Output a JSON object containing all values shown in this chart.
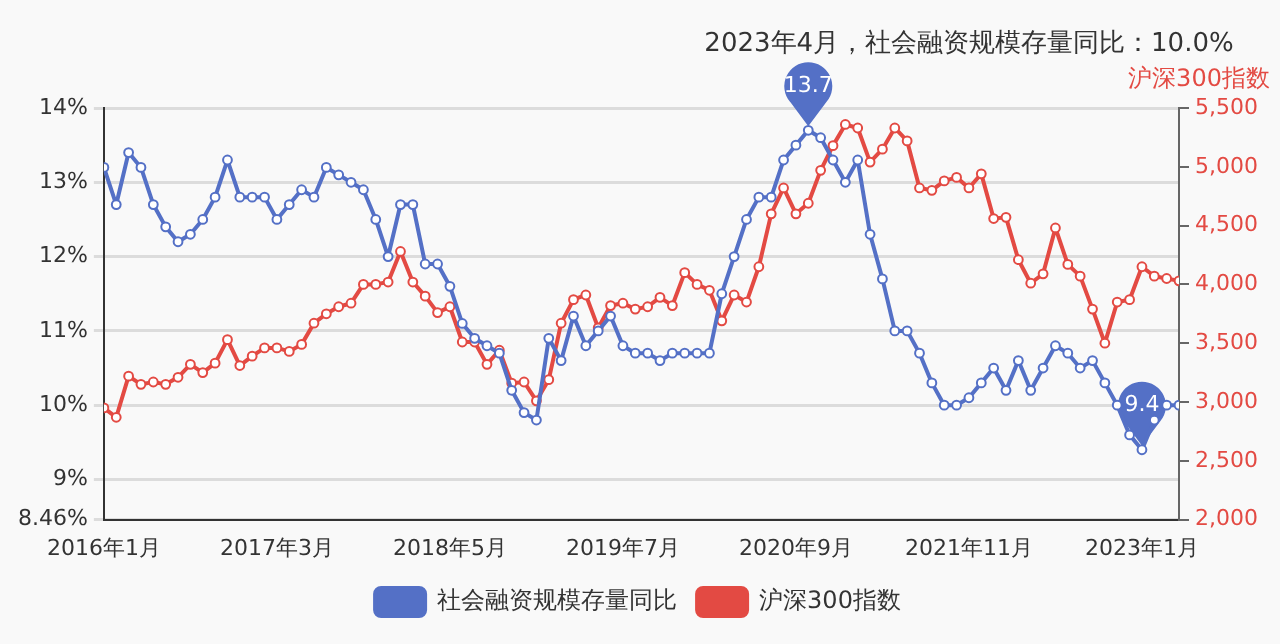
{
  "chart_data": {
    "type": "line",
    "title": "2023年4月，社会融资规模存量同比：10.0%",
    "y2label": "沪深300指数",
    "x": [
      "2016-01",
      "2016-02",
      "2016-03",
      "2016-04",
      "2016-05",
      "2016-06",
      "2016-07",
      "2016-08",
      "2016-09",
      "2016-10",
      "2016-11",
      "2016-12",
      "2017-01",
      "2017-02",
      "2017-03",
      "2017-04",
      "2017-05",
      "2017-06",
      "2017-07",
      "2017-08",
      "2017-09",
      "2017-10",
      "2017-11",
      "2017-12",
      "2018-01",
      "2018-02",
      "2018-03",
      "2018-04",
      "2018-05",
      "2018-06",
      "2018-07",
      "2018-08",
      "2018-09",
      "2018-10",
      "2018-11",
      "2018-12",
      "2019-01",
      "2019-02",
      "2019-03",
      "2019-04",
      "2019-05",
      "2019-06",
      "2019-07",
      "2019-08",
      "2019-09",
      "2019-10",
      "2019-11",
      "2019-12",
      "2020-01",
      "2020-02",
      "2020-03",
      "2020-04",
      "2020-05",
      "2020-06",
      "2020-07",
      "2020-08",
      "2020-09",
      "2020-10",
      "2020-11",
      "2020-12",
      "2021-01",
      "2021-02",
      "2021-03",
      "2021-04",
      "2021-05",
      "2021-06",
      "2021-07",
      "2021-08",
      "2021-09",
      "2021-10",
      "2021-11",
      "2021-12",
      "2022-01",
      "2022-02",
      "2022-03",
      "2022-04",
      "2022-05",
      "2022-06",
      "2022-07",
      "2022-08",
      "2022-09",
      "2022-10",
      "2022-11",
      "2022-12",
      "2023-01",
      "2023-02",
      "2023-03",
      "2023-04"
    ],
    "xlim": [
      "2016-01",
      "2023-04"
    ],
    "xticks": [
      {
        "value": "2016-01",
        "label": "2016年1月"
      },
      {
        "value": "2017-03",
        "label": "2017年3月"
      },
      {
        "value": "2018-05",
        "label": "2018年5月"
      },
      {
        "value": "2019-07",
        "label": "2019年7月"
      },
      {
        "value": "2020-09",
        "label": "2020年9月"
      },
      {
        "value": "2021-11",
        "label": "2021年11月"
      },
      {
        "value": "2023-01",
        "label": "2023年1月"
      }
    ],
    "series": [
      {
        "name": "社会融资规模存量同比",
        "color": "#5470c6",
        "values": [
          13.2,
          12.7,
          13.4,
          13.2,
          12.7,
          12.4,
          12.2,
          12.3,
          12.5,
          12.8,
          13.3,
          12.8,
          12.8,
          12.8,
          12.5,
          12.7,
          12.9,
          12.8,
          13.2,
          13.1,
          13.0,
          12.9,
          12.5,
          12.0,
          12.7,
          12.7,
          11.9,
          11.9,
          11.6,
          11.1,
          10.9,
          10.8,
          10.7,
          10.2,
          9.9,
          9.8,
          10.9,
          10.6,
          11.2,
          10.8,
          11.0,
          11.2,
          10.8,
          10.7,
          10.7,
          10.6,
          10.7,
          10.7,
          10.7,
          10.7,
          11.5,
          12.0,
          12.5,
          12.8,
          12.8,
          13.3,
          13.5,
          13.7,
          13.6,
          13.3,
          13.0,
          13.3,
          12.3,
          11.7,
          11.0,
          11.0,
          10.7,
          10.3,
          10.0,
          10.0,
          10.1,
          10.3,
          10.5,
          10.2,
          10.6,
          10.2,
          10.5,
          10.8,
          10.7,
          10.5,
          10.6,
          10.3,
          10.0,
          9.6,
          9.4,
          9.8,
          10.0,
          10.0
        ]
      },
      {
        "name": "沪深300指数",
        "color": "#e34a43",
        "axis": "y2",
        "values": [
          2950,
          2870,
          3220,
          3150,
          3170,
          3150,
          3210,
          3320,
          3250,
          3330,
          3530,
          3310,
          3390,
          3460,
          3460,
          3430,
          3490,
          3670,
          3750,
          3810,
          3840,
          4000,
          4000,
          4020,
          4280,
          4020,
          3900,
          3760,
          3810,
          3510,
          3510,
          3320,
          3440,
          3160,
          3170,
          3010,
          3190,
          3670,
          3870,
          3910,
          3630,
          3820,
          3840,
          3790,
          3810,
          3890,
          3820,
          4100,
          4000,
          3950,
          3690,
          3910,
          3850,
          4150,
          4600,
          4820,
          4600,
          4690,
          4970,
          5180,
          5360,
          5330,
          5040,
          5150,
          5330,
          5220,
          4820,
          4800,
          4880,
          4910,
          4820,
          4940,
          4560,
          4570,
          4210,
          4010,
          4090,
          4480,
          4170,
          4070,
          3790,
          3500,
          3850,
          3870,
          4150,
          4070,
          4050,
          4030
        ]
      }
    ],
    "ylim": [
      8.46,
      14
    ],
    "yticks": [
      {
        "value": 8.46,
        "label": "8.46%"
      },
      {
        "value": 9,
        "label": "9%"
      },
      {
        "value": 10,
        "label": "10%"
      },
      {
        "value": 11,
        "label": "11%"
      },
      {
        "value": 12,
        "label": "12%"
      },
      {
        "value": 13,
        "label": "13%"
      },
      {
        "value": 14,
        "label": "14%"
      }
    ],
    "y2lim": [
      2000,
      5500
    ],
    "y2ticks": [
      {
        "value": 2000,
        "label": "2,000"
      },
      {
        "value": 2500,
        "label": "2,500"
      },
      {
        "value": 3000,
        "label": "3,000"
      },
      {
        "value": 3500,
        "label": "3,500"
      },
      {
        "value": 4000,
        "label": "4,000"
      },
      {
        "value": 4500,
        "label": "4,500"
      },
      {
        "value": 5000,
        "label": "5,000"
      },
      {
        "value": 5500,
        "label": "5,500"
      }
    ],
    "annotations": [
      {
        "text": "13.7",
        "x": "2020-10",
        "y": 13.7
      },
      {
        "text": "9.4",
        "x": "2023-01",
        "y": 9.4
      }
    ],
    "grid": "y",
    "legend": "bottom",
    "marker": "circle",
    "line_style": "solid"
  }
}
